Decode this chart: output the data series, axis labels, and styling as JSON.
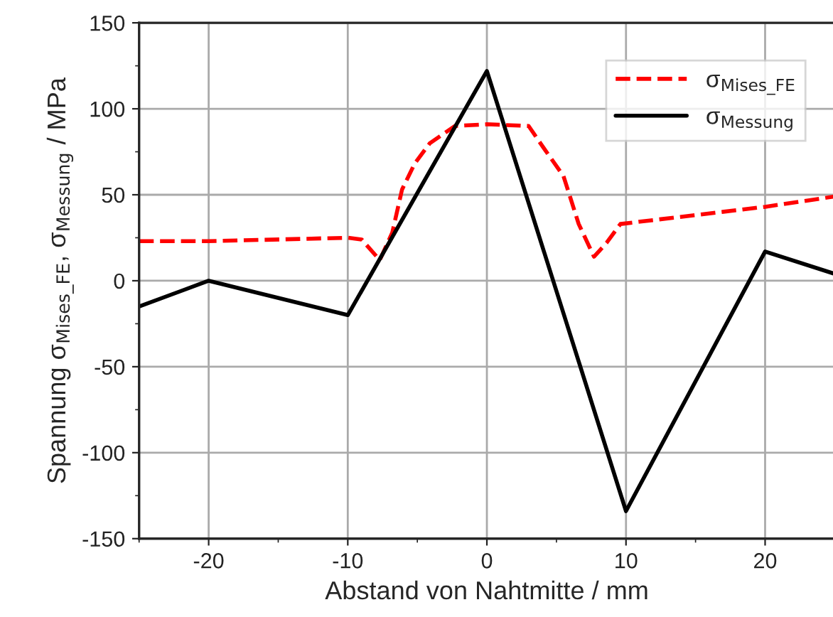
{
  "chart_data": {
    "type": "line",
    "xlabel": "Abstand von Nahtmitte / mm",
    "ylabel": "Spannung σ$_{Mises_FE}$, σ$_{Messung}$ / MPa",
    "xlim": [
      -25,
      25
    ],
    "xticks": [
      -20,
      -10,
      0,
      10,
      20
    ],
    "ylim": [
      -150,
      150
    ],
    "yticks": [
      -150,
      -100,
      -50,
      0,
      50,
      100,
      150
    ],
    "grid": true,
    "legend": "top right",
    "series": [
      {
        "name": "σ$_{Mises_FE}$",
        "color": "#ff0000",
        "line_style": "dashed",
        "x": [
          -25,
          -20,
          -10,
          -9,
          -7.7,
          -6.8,
          -6.1,
          -5.2,
          -4.1,
          -2.3,
          0,
          3,
          4.1,
          5.5,
          6.6,
          7.7,
          8.6,
          9.6,
          20,
          25
        ],
        "values": [
          23,
          23,
          25,
          24,
          12,
          28,
          53,
          68,
          80,
          90,
          91,
          90,
          77,
          61,
          33,
          14,
          22,
          33,
          43,
          49
        ]
      },
      {
        "name": "σ$_{Messung}$",
        "color": "#000000",
        "line_style": "solid",
        "x": [
          -25,
          -20,
          -10,
          0,
          10,
          20,
          25
        ],
        "values": [
          -15,
          0,
          -20,
          122,
          -134,
          17,
          4
        ]
      }
    ]
  }
}
